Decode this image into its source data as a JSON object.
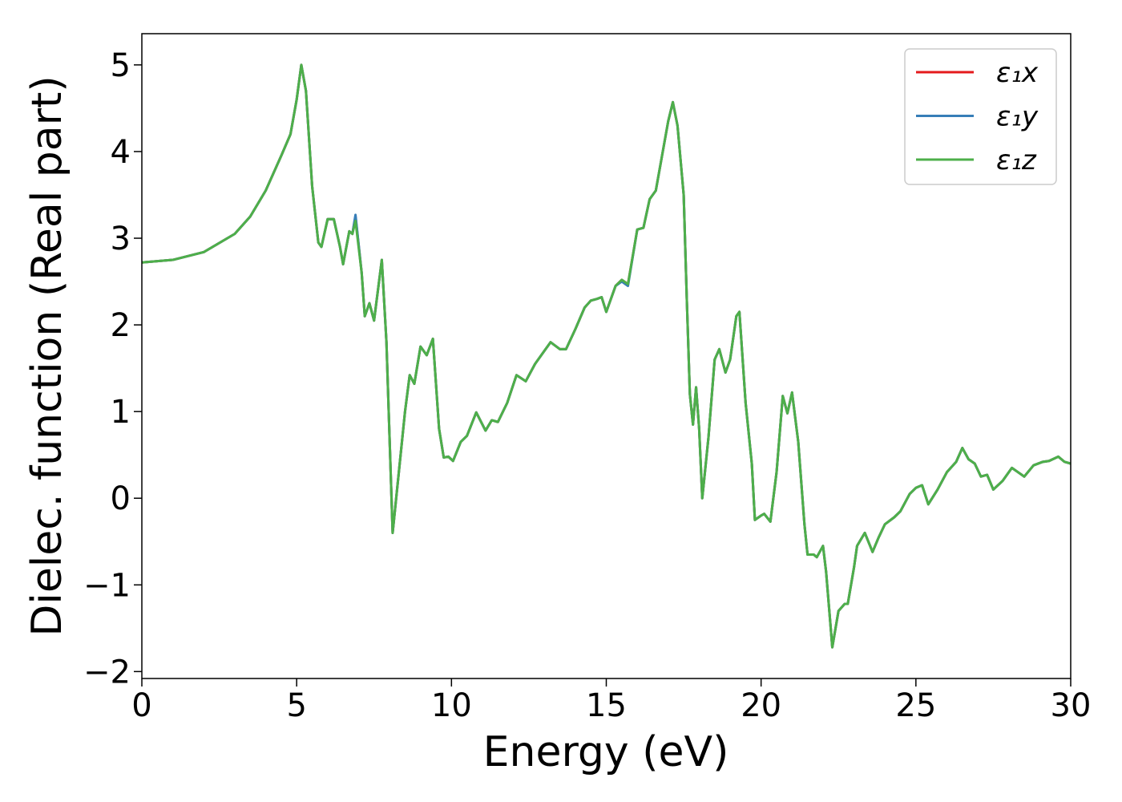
{
  "chart_data": {
    "type": "line",
    "xlabel": "Energy (eV)",
    "ylabel": "Dielec. function (Real part)",
    "xlim": [
      0,
      30
    ],
    "ylim": [
      -2.08,
      5.36
    ],
    "xticks": [
      0,
      5,
      10,
      15,
      20,
      25,
      30
    ],
    "yticks": [
      {
        "value": -2,
        "label": "−2"
      },
      {
        "value": -1,
        "label": "−1"
      },
      0,
      1,
      2,
      3,
      4,
      5
    ],
    "legend": "upper right",
    "grid": false,
    "x": [
      0,
      1,
      2,
      3,
      3.5,
      4,
      4.5,
      4.8,
      5.0,
      5.15,
      5.3,
      5.5,
      5.7,
      5.8,
      6.0,
      6.2,
      6.4,
      6.5,
      6.7,
      6.8,
      6.9,
      7.1,
      7.2,
      7.35,
      7.5,
      7.75,
      7.9,
      8.1,
      8.3,
      8.5,
      8.65,
      8.8,
      9.0,
      9.2,
      9.4,
      9.6,
      9.75,
      9.9,
      10.05,
      10.3,
      10.5,
      10.8,
      11.1,
      11.3,
      11.5,
      11.8,
      12.1,
      12.4,
      12.7,
      13.0,
      13.2,
      13.5,
      13.7,
      14.0,
      14.3,
      14.5,
      14.7,
      14.85,
      15.0,
      15.3,
      15.5,
      15.7,
      16.0,
      16.2,
      16.4,
      16.6,
      16.8,
      17.0,
      17.15,
      17.3,
      17.5,
      17.6,
      17.7,
      17.8,
      17.9,
      18.0,
      18.1,
      18.3,
      18.5,
      18.65,
      18.85,
      19.0,
      19.2,
      19.3,
      19.5,
      19.7,
      19.8,
      20.0,
      20.1,
      20.3,
      20.5,
      20.7,
      20.85,
      21.0,
      21.2,
      21.4,
      21.5,
      21.7,
      21.8,
      22.0,
      22.1,
      22.3,
      22.5,
      22.7,
      22.8,
      23.0,
      23.1,
      23.35,
      23.6,
      23.8,
      24.0,
      24.3,
      24.5,
      24.8,
      25.0,
      25.2,
      25.4,
      25.7,
      26.0,
      26.3,
      26.5,
      26.7,
      26.9,
      27.1,
      27.3,
      27.5,
      27.8,
      28.1,
      28.3,
      28.5,
      28.8,
      29.1,
      29.3,
      29.6,
      29.8,
      30
    ],
    "series": [
      {
        "name": "ε₁x",
        "color": "#e41a1c",
        "values": [
          2.72,
          2.75,
          2.84,
          3.05,
          3.25,
          3.55,
          3.95,
          4.2,
          4.6,
          5.0,
          4.7,
          3.6,
          2.95,
          2.9,
          3.22,
          3.22,
          2.9,
          2.7,
          3.08,
          3.05,
          3.25,
          2.6,
          2.1,
          2.25,
          2.05,
          2.75,
          1.8,
          -0.4,
          0.3,
          1.0,
          1.42,
          1.32,
          1.75,
          1.65,
          1.84,
          0.8,
          0.47,
          0.48,
          0.43,
          0.65,
          0.72,
          0.99,
          0.78,
          0.9,
          0.88,
          1.1,
          1.42,
          1.35,
          1.55,
          1.7,
          1.8,
          1.72,
          1.72,
          1.95,
          2.2,
          2.28,
          2.3,
          2.32,
          2.15,
          2.45,
          2.52,
          2.47,
          3.1,
          3.12,
          3.45,
          3.55,
          3.95,
          4.35,
          4.57,
          4.3,
          3.5,
          2.3,
          1.2,
          0.85,
          1.28,
          0.8,
          0.0,
          0.7,
          1.6,
          1.72,
          1.45,
          1.6,
          2.1,
          2.15,
          1.1,
          0.4,
          -0.25,
          -0.2,
          -0.18,
          -0.27,
          0.3,
          1.18,
          0.98,
          1.22,
          0.65,
          -0.3,
          -0.65,
          -0.65,
          -0.68,
          -0.55,
          -0.85,
          -1.72,
          -1.3,
          -1.22,
          -1.22,
          -0.8,
          -0.55,
          -0.4,
          -0.62,
          -0.45,
          -0.3,
          -0.22,
          -0.15,
          0.05,
          0.12,
          0.15,
          -0.07,
          0.1,
          0.3,
          0.42,
          0.58,
          0.45,
          0.4,
          0.25,
          0.27,
          0.1,
          0.2,
          0.35,
          0.3,
          0.25,
          0.38,
          0.42,
          0.43,
          0.48,
          0.42,
          0.4
        ]
      },
      {
        "name": "ε₁y",
        "color": "#377eb8",
        "values": [
          2.72,
          2.75,
          2.84,
          3.05,
          3.25,
          3.55,
          3.95,
          4.2,
          4.6,
          5.0,
          4.7,
          3.6,
          2.95,
          2.9,
          3.22,
          3.22,
          2.9,
          2.7,
          3.08,
          3.05,
          3.27,
          2.6,
          2.1,
          2.25,
          2.05,
          2.75,
          1.8,
          -0.4,
          0.3,
          1.0,
          1.42,
          1.32,
          1.75,
          1.65,
          1.84,
          0.8,
          0.47,
          0.48,
          0.43,
          0.65,
          0.72,
          0.99,
          0.78,
          0.9,
          0.88,
          1.1,
          1.42,
          1.35,
          1.55,
          1.7,
          1.8,
          1.72,
          1.72,
          1.95,
          2.2,
          2.28,
          2.3,
          2.32,
          2.15,
          2.45,
          2.5,
          2.45,
          3.1,
          3.12,
          3.45,
          3.55,
          3.95,
          4.35,
          4.57,
          4.3,
          3.5,
          2.3,
          1.2,
          0.85,
          1.28,
          0.8,
          0.0,
          0.7,
          1.6,
          1.72,
          1.45,
          1.6,
          2.1,
          2.15,
          1.1,
          0.4,
          -0.25,
          -0.2,
          -0.18,
          -0.27,
          0.3,
          1.18,
          0.98,
          1.22,
          0.65,
          -0.3,
          -0.65,
          -0.65,
          -0.68,
          -0.55,
          -0.85,
          -1.72,
          -1.3,
          -1.22,
          -1.22,
          -0.8,
          -0.55,
          -0.4,
          -0.62,
          -0.45,
          -0.3,
          -0.22,
          -0.15,
          0.05,
          0.12,
          0.15,
          -0.07,
          0.1,
          0.3,
          0.42,
          0.58,
          0.45,
          0.4,
          0.25,
          0.27,
          0.1,
          0.2,
          0.35,
          0.3,
          0.25,
          0.38,
          0.42,
          0.43,
          0.48,
          0.42,
          0.4
        ]
      },
      {
        "name": "ε₁z",
        "color": "#4daf4a",
        "values": [
          2.72,
          2.75,
          2.84,
          3.05,
          3.25,
          3.55,
          3.95,
          4.2,
          4.6,
          5.0,
          4.7,
          3.6,
          2.95,
          2.9,
          3.22,
          3.22,
          2.9,
          2.7,
          3.08,
          3.05,
          3.2,
          2.6,
          2.1,
          2.25,
          2.05,
          2.75,
          1.8,
          -0.4,
          0.3,
          1.0,
          1.42,
          1.32,
          1.75,
          1.65,
          1.84,
          0.8,
          0.47,
          0.48,
          0.43,
          0.65,
          0.72,
          0.99,
          0.78,
          0.9,
          0.88,
          1.1,
          1.42,
          1.35,
          1.55,
          1.7,
          1.8,
          1.72,
          1.72,
          1.95,
          2.2,
          2.28,
          2.3,
          2.32,
          2.15,
          2.45,
          2.52,
          2.47,
          3.1,
          3.12,
          3.45,
          3.55,
          3.95,
          4.35,
          4.57,
          4.3,
          3.5,
          2.3,
          1.2,
          0.85,
          1.28,
          0.8,
          0.0,
          0.7,
          1.6,
          1.72,
          1.45,
          1.6,
          2.1,
          2.15,
          1.1,
          0.4,
          -0.25,
          -0.2,
          -0.18,
          -0.27,
          0.3,
          1.18,
          0.98,
          1.22,
          0.65,
          -0.3,
          -0.65,
          -0.65,
          -0.68,
          -0.55,
          -0.85,
          -1.72,
          -1.3,
          -1.22,
          -1.22,
          -0.8,
          -0.55,
          -0.4,
          -0.62,
          -0.45,
          -0.3,
          -0.22,
          -0.15,
          0.05,
          0.12,
          0.15,
          -0.07,
          0.1,
          0.3,
          0.42,
          0.58,
          0.45,
          0.4,
          0.25,
          0.27,
          0.1,
          0.2,
          0.35,
          0.3,
          0.25,
          0.38,
          0.42,
          0.43,
          0.48,
          0.42,
          0.4
        ]
      }
    ]
  }
}
